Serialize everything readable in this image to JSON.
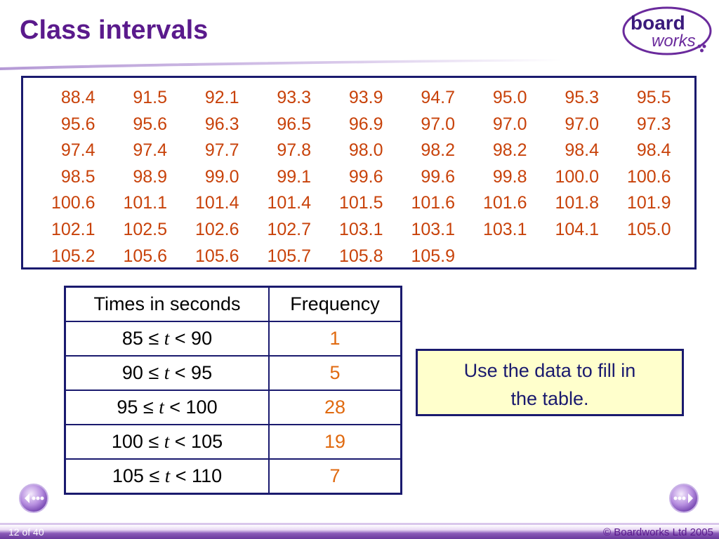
{
  "slide": {
    "title": "Class intervals",
    "page_indicator": "12 of 40",
    "copyright": "© Boardworks Ltd 2005",
    "logo_line1": "board",
    "logo_line2": "works"
  },
  "raw_data": [
    [
      "88.4",
      "91.5",
      "92.1",
      "93.3",
      "93.9",
      "94.7",
      "95.0",
      "95.3",
      "95.5"
    ],
    [
      "95.6",
      "95.6",
      "96.3",
      "96.5",
      "96.9",
      "97.0",
      "97.0",
      "97.0",
      "97.3"
    ],
    [
      "97.4",
      "97.4",
      "97.7",
      "97.8",
      "98.0",
      "98.2",
      "98.2",
      "98.4",
      "98.4"
    ],
    [
      "98.5",
      "98.9",
      "99.0",
      "99.1",
      "99.6",
      "99.6",
      "99.8",
      "100.0",
      "100.6"
    ],
    [
      "100.6",
      "101.1",
      "101.4",
      "101.4",
      "101.5",
      "101.6",
      "101.6",
      "101.8",
      "101.9"
    ],
    [
      "102.1",
      "102.5",
      "102.6",
      "102.7",
      "103.1",
      "103.1",
      "103.1",
      "104.1",
      "105.0"
    ],
    [
      "105.2",
      "105.6",
      "105.6",
      "105.7",
      "105.8",
      "105.9",
      "",
      "",
      ""
    ]
  ],
  "freq_table": {
    "headers": [
      "Times in seconds",
      "Frequency"
    ],
    "rows": [
      {
        "low": "85 ≤ ",
        "var": "t",
        "high": " < 90",
        "frequency": "1"
      },
      {
        "low": "90 ≤ ",
        "var": "t",
        "high": " < 95",
        "frequency": "5"
      },
      {
        "low": "95 ≤ ",
        "var": "t",
        "high": " < 100",
        "frequency": "28"
      },
      {
        "low": "100 ≤ ",
        "var": "t",
        "high": " < 105",
        "frequency": "19"
      },
      {
        "low": "105 ≤ ",
        "var": "t",
        "high": " < 110",
        "frequency": "7"
      }
    ]
  },
  "note": {
    "line1": "Use the data to fill in",
    "line2": "the table."
  },
  "colors": {
    "title": "#5a1a8c",
    "data_text": "#c8420a",
    "frequency_text": "#e06a10",
    "border": "#1a1a6e",
    "note_bg": "#ffffcc"
  },
  "icons": {
    "prev": "previous-slide-icon",
    "next": "next-slide-icon"
  }
}
